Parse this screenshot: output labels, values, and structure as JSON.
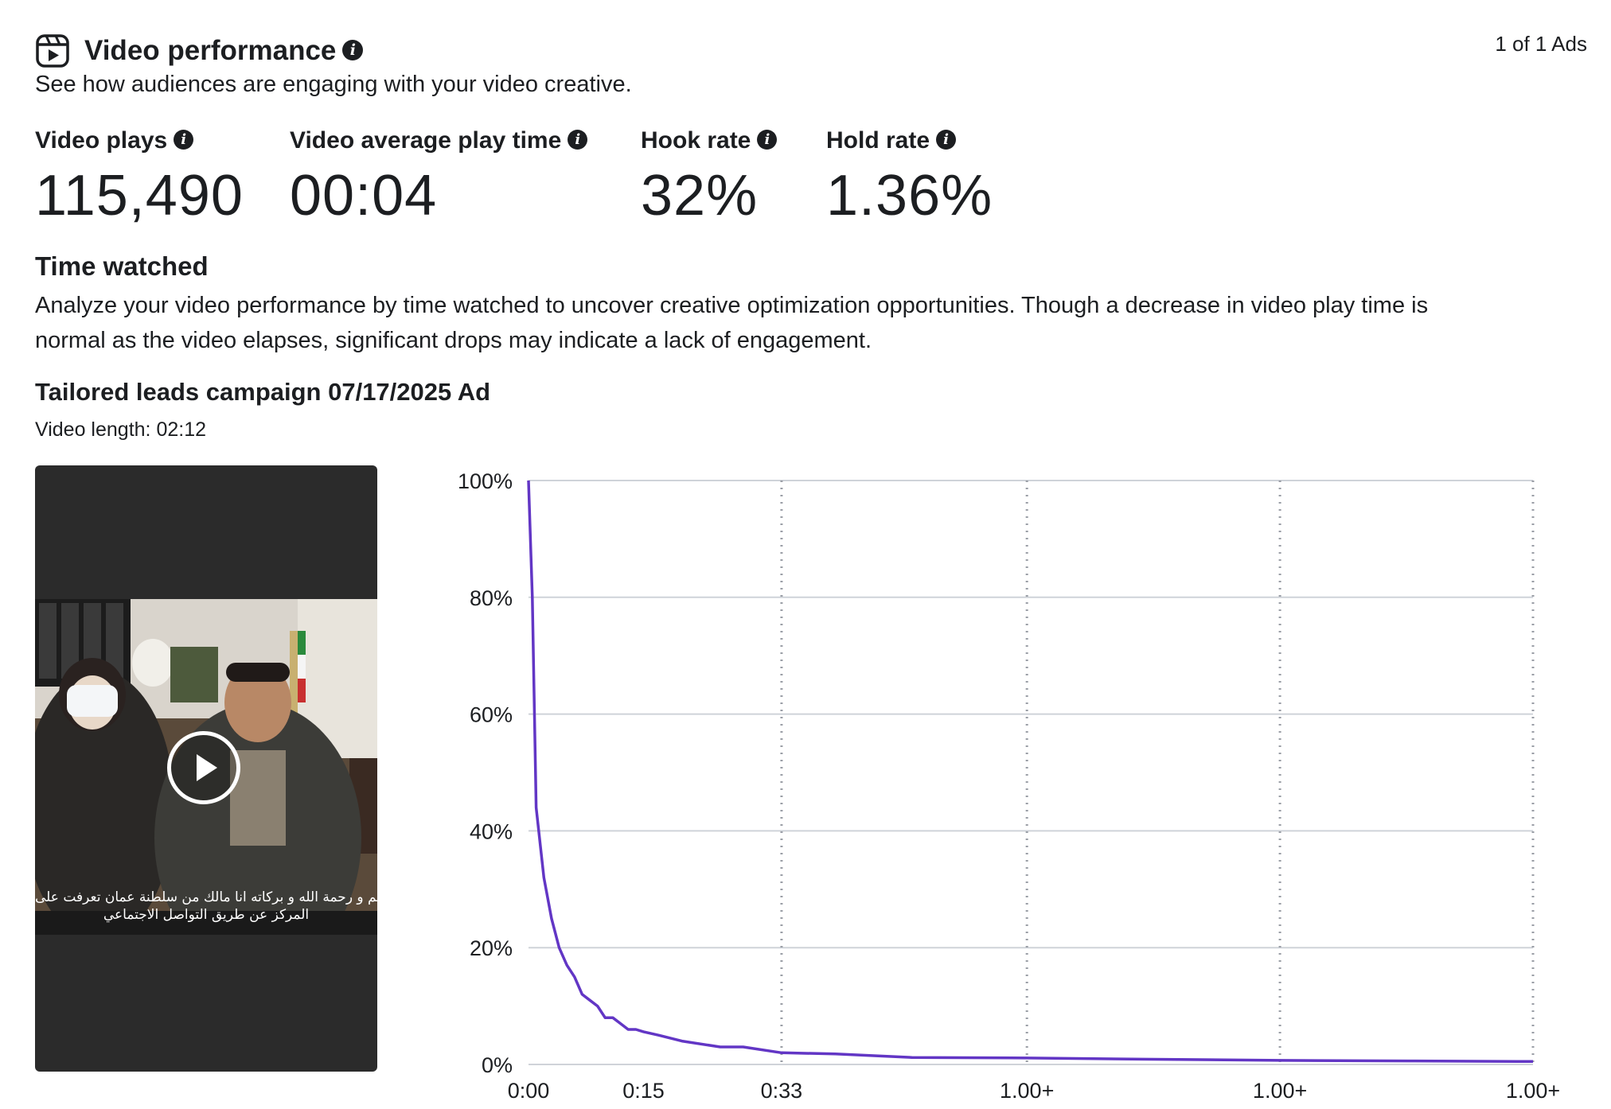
{
  "header": {
    "title": "Video performance",
    "subtitle": "See how audiences are engaging with your video creative.",
    "ads_count": "1 of 1 Ads",
    "icon": "video-reel-icon"
  },
  "metrics": [
    {
      "label": "Video plays",
      "value": "115,490"
    },
    {
      "label": "Video average play time",
      "value": "00:04"
    },
    {
      "label": "Hook rate",
      "value": "32%"
    },
    {
      "label": "Hold rate",
      "value": "1.36%"
    }
  ],
  "time_watched": {
    "title": "Time watched",
    "description_line1": "Analyze your video performance by time watched to uncover creative optimization opportunities. Though a decrease in video play time is",
    "description_line2": "normal as the video elapses, significant drops may indicate a lack of engagement."
  },
  "ad": {
    "name": "Tailored leads campaign 07/17/2025 Ad",
    "video_length": "Video length: 02:12",
    "caption_line1": "السلام عليكم و رحمة الله و بركاته انا مالك من سلطنة عمان تعرفت على",
    "caption_line2": "المركز عن طريق التواصل الاجتماعي"
  },
  "colors": {
    "line": "#6236c5",
    "grid": "#cfd3d9",
    "text": "#1c1e21",
    "video_bg": "#2b2b2b"
  },
  "chart_data": {
    "type": "line",
    "title": "",
    "xlabel": "",
    "ylabel": "",
    "ylim": [
      0,
      100
    ],
    "y_ticks": [
      "0%",
      "20%",
      "40%",
      "60%",
      "80%",
      "100%"
    ],
    "x_ticks": [
      "0:00",
      "0:15",
      "0:33",
      "1.00+",
      "1.00+",
      "1.00+"
    ],
    "x_tick_positions": [
      0,
      15,
      33,
      65,
      98,
      131
    ],
    "xlim": [
      0,
      131
    ],
    "series": [
      {
        "x": [
          0,
          0.5,
          1,
          2,
          3,
          4,
          5,
          6,
          7,
          8,
          9,
          10,
          11,
          12,
          13,
          14,
          15,
          17,
          20,
          25,
          28,
          33,
          40,
          50,
          65,
          80,
          98,
          115,
          131
        ],
        "values": [
          100,
          80,
          44,
          32,
          25,
          20,
          17,
          15,
          12,
          11,
          10,
          8,
          8,
          7,
          6,
          6,
          5.6,
          5,
          4,
          3,
          3,
          2,
          1.8,
          1.2,
          1.1,
          0.9,
          0.7,
          0.6,
          0.5
        ]
      }
    ]
  }
}
